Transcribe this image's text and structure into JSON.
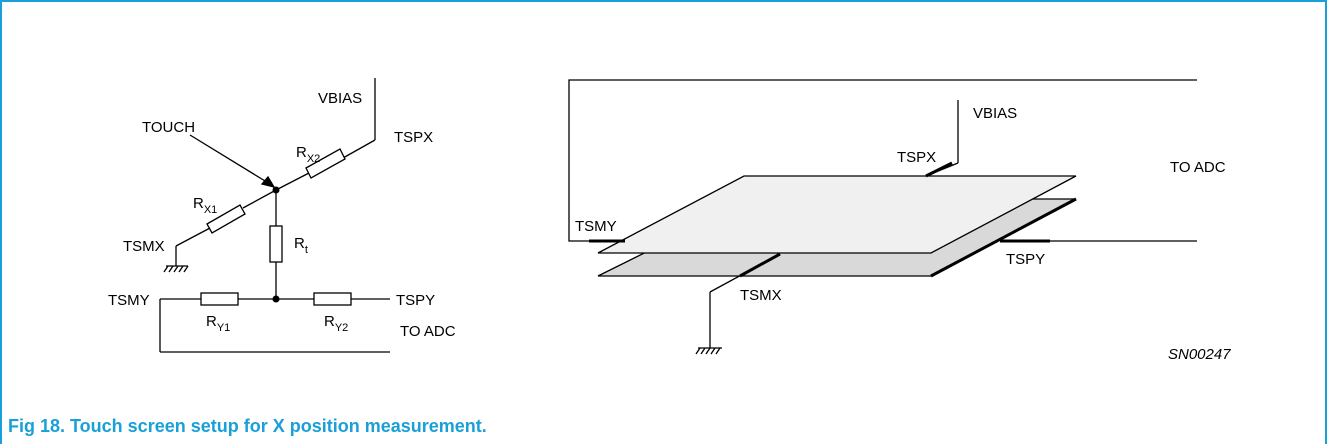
{
  "colors": {
    "accent": "#1aa0d8",
    "plate_top": "#f0f0f0",
    "plate_bottom": "#d9d9d9"
  },
  "left_diagram": {
    "vbias": "VBIAS",
    "tspx": "TSPX",
    "touch": "TOUCH",
    "rx2": {
      "main": "R",
      "sub": "X2"
    },
    "rx1": {
      "main": "R",
      "sub": "X1"
    },
    "rt": {
      "main": "R",
      "sub": "t"
    },
    "tsmx": "TSMX",
    "tsmy": "TSMY",
    "tspy": "TSPY",
    "ry1": {
      "main": "R",
      "sub": "Y1"
    },
    "ry2": {
      "main": "R",
      "sub": "Y2"
    },
    "to_adc": "TO ADC"
  },
  "right_diagram": {
    "vbias": "VBIAS",
    "tspx": "TSPX",
    "to_adc": "TO ADC",
    "tsmy": "TSMY",
    "tspy": "TSPY",
    "tsmx": "TSMX",
    "ref": "SN00247"
  },
  "caption": "Fig 18.  Touch screen setup for X position measurement."
}
